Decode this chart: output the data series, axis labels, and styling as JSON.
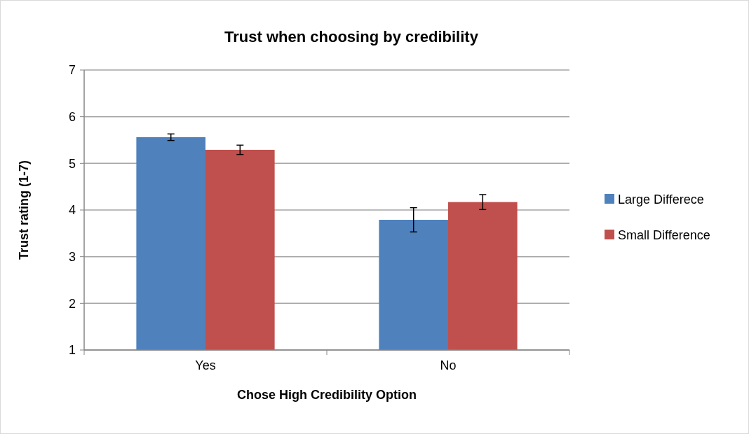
{
  "chart_data": {
    "type": "bar",
    "title": "Trust when choosing by credibility",
    "xlabel": "Chose High Credibility Option",
    "ylabel": "Trust rating (1-7)",
    "categories": [
      "Yes",
      "No"
    ],
    "series": [
      {
        "name": "Large  Differece",
        "color": "#4f81bd",
        "values": [
          5.56,
          3.79
        ],
        "errors": [
          0.07,
          0.26
        ]
      },
      {
        "name": "Small Difference",
        "color": "#c0504d",
        "values": [
          5.29,
          4.17
        ],
        "errors": [
          0.1,
          0.16
        ]
      }
    ],
    "ylim": [
      1,
      7
    ],
    "yticks": [
      1,
      2,
      3,
      4,
      5,
      6,
      7
    ],
    "grid": "y",
    "legend": "right"
  }
}
